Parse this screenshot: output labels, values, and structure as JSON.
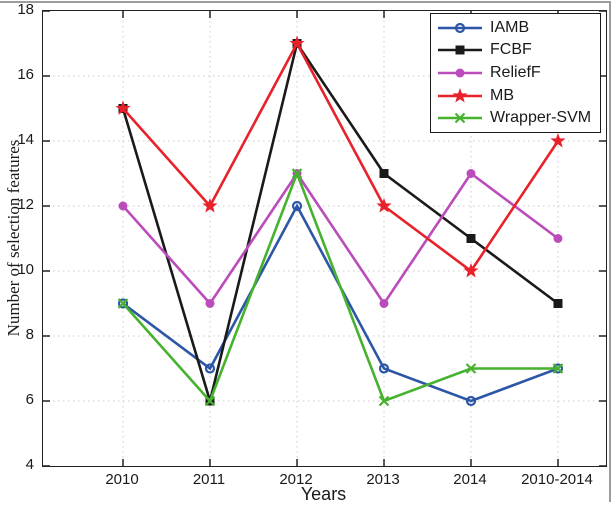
{
  "chart_data": {
    "type": "line",
    "title": "",
    "xlabel": "Years",
    "ylabel": "Number of selection features",
    "categories": [
      "2010",
      "2011",
      "2012",
      "2013",
      "2014",
      "2010-2014"
    ],
    "y_ticks": [
      4,
      6,
      8,
      10,
      12,
      14,
      16,
      18
    ],
    "ylim": [
      4,
      18
    ],
    "grid": "dotted",
    "grid_color": "#d4d4d4",
    "axis_color": "#222222",
    "legend_position": "top-right",
    "series": [
      {
        "name": "IAMB",
        "color": "#2d56a6",
        "marker": "circle-open",
        "values": [
          9,
          7,
          12,
          7,
          6,
          7
        ]
      },
      {
        "name": "FCBF",
        "color": "#1a1a1a",
        "marker": "square",
        "values": [
          15,
          6,
          17,
          13,
          11,
          9
        ]
      },
      {
        "name": "ReliefF",
        "color": "#bb4cbb",
        "marker": "circle",
        "values": [
          12,
          9,
          13,
          9,
          13,
          11
        ]
      },
      {
        "name": "MB",
        "color": "#e8212a",
        "marker": "star",
        "values": [
          15,
          12,
          17,
          12,
          10,
          14
        ]
      },
      {
        "name": "Wrapper-SVM",
        "color": "#46b22e",
        "marker": "x",
        "values": [
          9,
          6,
          13,
          6,
          7,
          7
        ]
      }
    ]
  }
}
